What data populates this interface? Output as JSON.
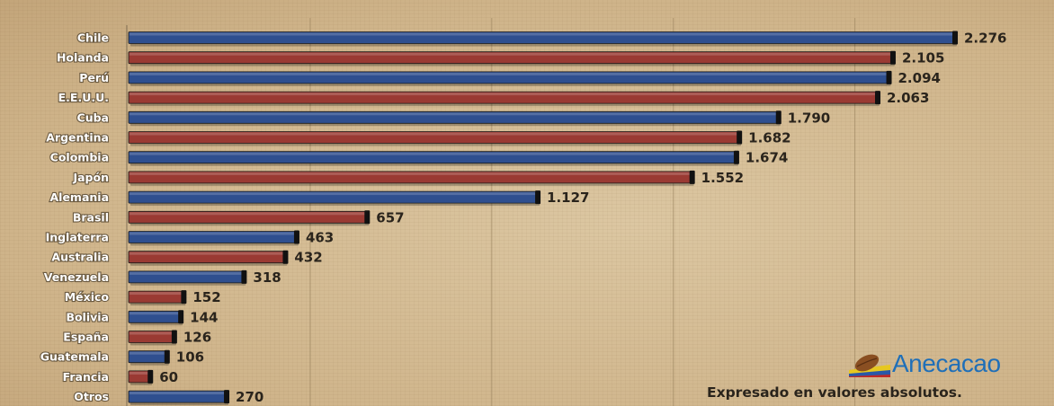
{
  "chart_data": {
    "type": "bar",
    "orientation": "horizontal",
    "categories": [
      "Chile",
      "Holanda",
      "Perú",
      "E.E.U.U.",
      "Cuba",
      "Argentina",
      "Colombia",
      "Japón",
      "Alemania",
      "Brasil",
      "Inglaterra",
      "Australia",
      "Venezuela",
      "México",
      "Bolivia",
      "España",
      "Guatemala",
      "Francia",
      "Otros"
    ],
    "values": [
      2276,
      2105,
      2094,
      2063,
      1790,
      1682,
      1674,
      1552,
      1127,
      657,
      463,
      432,
      318,
      152,
      144,
      126,
      106,
      60,
      270
    ],
    "value_labels": [
      "2.276",
      "2.105",
      "2.094",
      "2.063",
      "1.790",
      "1.682",
      "1.674",
      "1.552",
      "1.127",
      "657",
      "463",
      "432",
      "318",
      "152",
      "144",
      "126",
      "106",
      "60",
      "270"
    ],
    "bar_colors": [
      "#2f4f8f",
      "#9a3a33",
      "#2f4f8f",
      "#9a3a33",
      "#2f4f8f",
      "#9a3a33",
      "#2f4f8f",
      "#9a3a33",
      "#2f4f8f",
      "#9a3a33",
      "#2f4f8f",
      "#9a3a33",
      "#2f4f8f",
      "#9a3a33",
      "#2f4f8f",
      "#9a3a33",
      "#2f4f8f",
      "#9a3a33",
      "#2f4f8f"
    ],
    "xlim": [
      0,
      2400
    ],
    "grid": true,
    "note": "Expresado en valores absolutos."
  },
  "logo": {
    "name": "Anecacao",
    "icon": "cacao-pod-icon"
  },
  "colors": {
    "blue": "#2f4f8f",
    "red": "#9a3a33",
    "background": "#d8c29c",
    "label_outline": "#6b5a40"
  }
}
